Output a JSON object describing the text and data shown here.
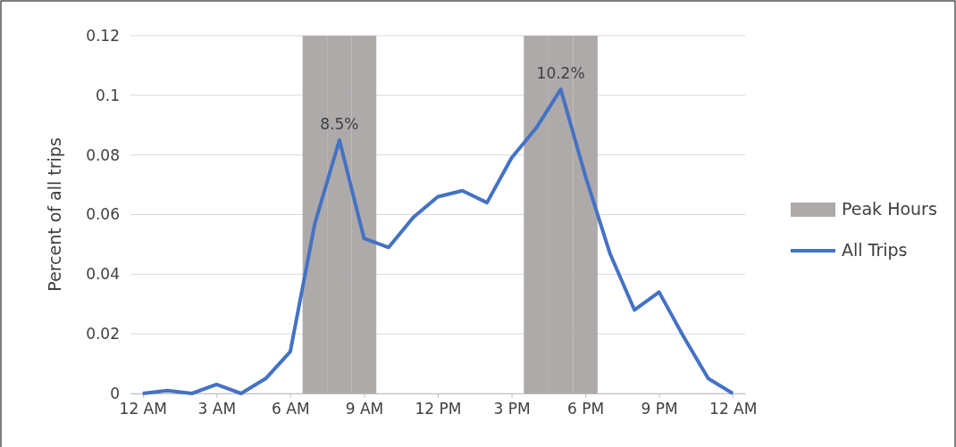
{
  "chart_data": {
    "type": "line",
    "ylabel": "Percent of  all trips",
    "categories": [
      "12 AM",
      null,
      null,
      "3 AM",
      null,
      null,
      "6 AM",
      null,
      null,
      "9 AM",
      null,
      null,
      "12 PM",
      null,
      null,
      "3 PM",
      null,
      null,
      "6 PM",
      null,
      null,
      "9 PM",
      null,
      null,
      "12 AM"
    ],
    "series": [
      {
        "name": "Peak Hours",
        "type": "bar",
        "color": "#aeaaaa",
        "values": [
          null,
          null,
          null,
          null,
          null,
          null,
          null,
          0.12,
          0.12,
          0.12,
          null,
          null,
          null,
          null,
          null,
          null,
          0.12,
          0.12,
          0.12,
          null,
          null,
          null,
          null,
          null,
          null
        ]
      },
      {
        "name": "All Trips",
        "color": "#4472c4",
        "values": [
          0,
          0.001,
          0,
          0.003,
          0,
          0.005,
          0.014,
          0.057,
          0.085,
          0.052,
          0.049,
          0.059,
          0.066,
          0.068,
          0.064,
          0.079,
          0.089,
          0.102,
          0.073,
          0.047,
          0.028,
          0.034,
          0.019,
          0.005,
          0
        ],
        "value_labels": [
          null,
          null,
          null,
          null,
          null,
          null,
          null,
          null,
          "8.5%",
          null,
          null,
          null,
          null,
          null,
          null,
          null,
          null,
          "10.2%",
          null,
          null,
          null,
          null,
          null,
          null,
          null
        ]
      }
    ],
    "ylim": [
      0,
      0.12
    ],
    "yticks": [
      0,
      0.02,
      0.04,
      0.06,
      0.08,
      0.1,
      0.12
    ],
    "grid": "y",
    "legend": "right",
    "marker": "none",
    "line_style": "solid"
  }
}
